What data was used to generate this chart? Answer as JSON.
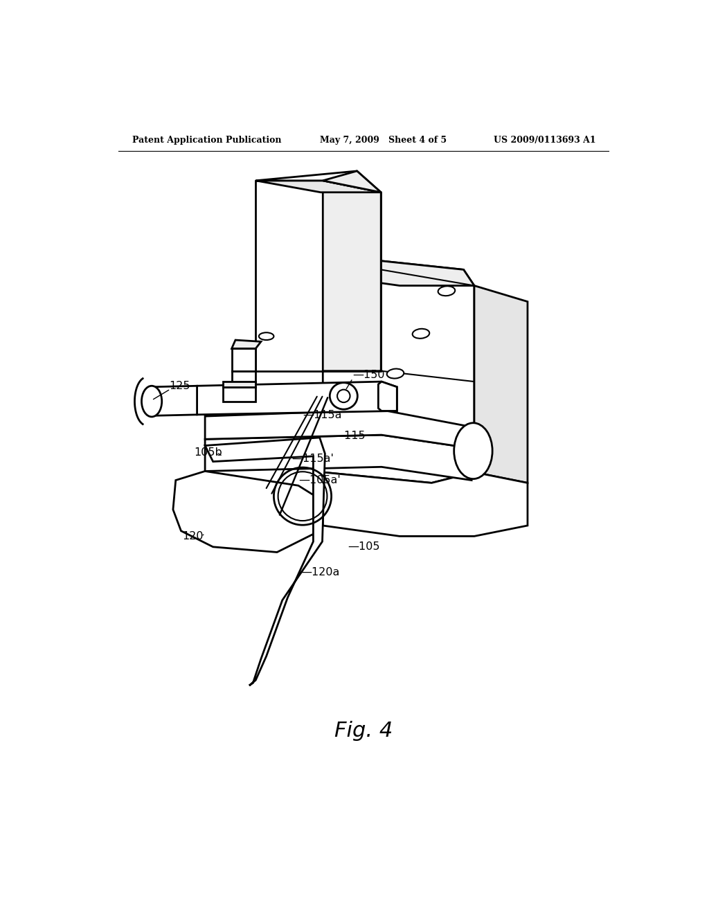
{
  "background_color": "#ffffff",
  "line_color": "#000000",
  "header_left": "Patent Application Publication",
  "header_center": "May 7, 2009   Sheet 4 of 5",
  "header_right": "US 2009/0113693 A1",
  "figure_label": "Fig. 4"
}
